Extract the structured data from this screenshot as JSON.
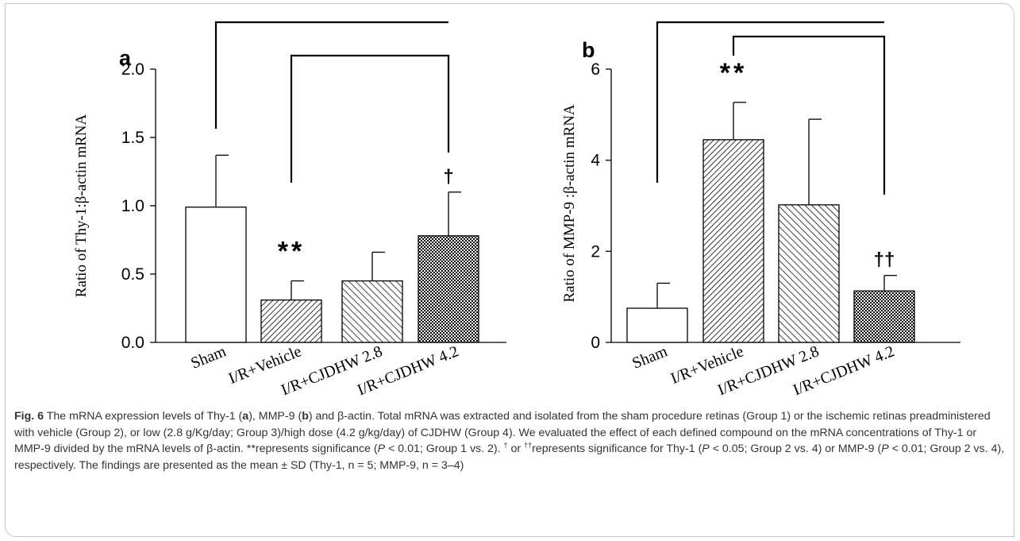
{
  "chart_data": [
    {
      "panel_label": "a",
      "type": "bar",
      "ylabel": "Ratio of Thy-1:β-actin mRNA",
      "ylim": [
        0,
        2.0
      ],
      "yticks": [
        "0.0",
        "0.5",
        "1.0",
        "1.5",
        "2.0"
      ],
      "categories": [
        "Sham",
        "I/R+Vehicle",
        "I/R+CJDHW 2.8",
        "I/R+CJDHW 4.2"
      ],
      "values": [
        0.99,
        0.31,
        0.45,
        0.78
      ],
      "sd": [
        0.38,
        0.14,
        0.21,
        0.32
      ],
      "annotations": [
        "",
        "**",
        "",
        "†"
      ],
      "grid": false
    },
    {
      "panel_label": "b",
      "type": "bar",
      "ylabel": "Ratio of MMP-9 :β-actin mRNA",
      "ylim": [
        0,
        6
      ],
      "yticks": [
        "0",
        "2",
        "4",
        "6"
      ],
      "categories": [
        "Sham",
        "I/R+Vehicle",
        "I/R+CJDHW 2.8",
        "I/R+CJDHW 4.2"
      ],
      "values": [
        0.75,
        4.45,
        3.02,
        1.13
      ],
      "sd": [
        0.55,
        0.82,
        1.88,
        0.34
      ],
      "annotations": [
        "",
        "**",
        "",
        "††"
      ],
      "grid": false
    }
  ],
  "caption": {
    "label": "Fig. 6",
    "text_1": " The mRNA expression levels of Thy-1 (",
    "a": "a",
    "text_2": "), MMP-9 (",
    "b": "b",
    "text_3": ") and β-actin. Total mRNA was extracted and isolated from the sham procedure retinas (Group 1) or the ischemic retinas preadministered with vehicle (Group 2), or low (2.8 g/Kg/day; Group 3)/high dose (4.2 g/kg/day) of CJDHW (Group 4). We evaluated the effect of each defined compound on the mRNA concentrations of Thy-1 or MMP-9 divided by the mRNA levels of β-actin. **represents significance (",
    "p1": "P",
    "text_4": " < 0.01; Group 1 vs. 2). ",
    "dag": "†",
    "text_5": " or ",
    "ddag": "††",
    "text_6": "represents significance for Thy-1 (",
    "p2": "P",
    "text_7": " < 0.05; Group 2 vs. 4) or MMP-9 (",
    "p3": "P",
    "text_8": " < 0.01; Group 2 vs. 4), respectively. The findings are presented as the mean ± SD (Thy-1, n = 5; MMP-9, n = 3–4)"
  }
}
